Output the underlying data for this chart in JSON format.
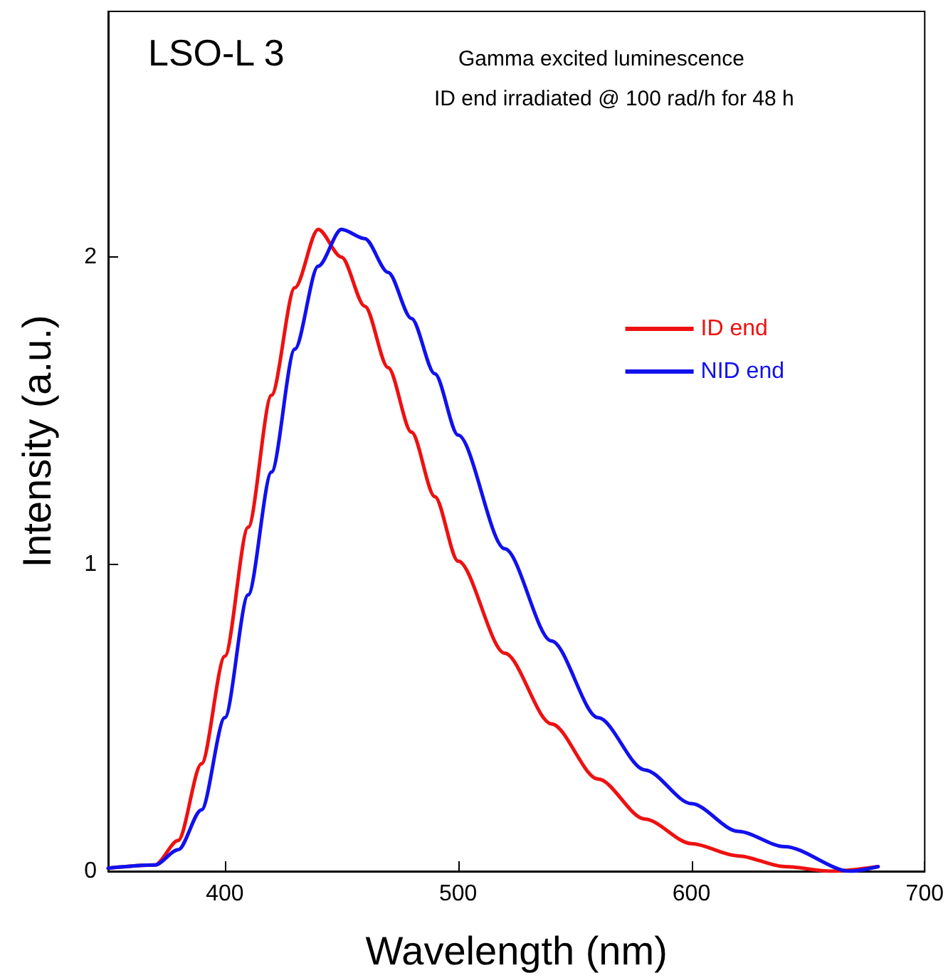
{
  "chart_data": {
    "type": "line",
    "title": "LSO-L 3",
    "subtitle": "Gamma excited luminescence",
    "annotations": [
      "ID end irradiated @ 100 rad/h for 48 h"
    ],
    "xlabel": "Wavelength (nm)",
    "ylabel": "Intensity (a.u.)",
    "xlim": [
      350,
      700
    ],
    "xticks": [
      400,
      500,
      600,
      700
    ],
    "ylim": [
      0,
      2.8
    ],
    "yticks": [
      0,
      1,
      2
    ],
    "grid": false,
    "legend": "right",
    "marker": "none",
    "line_style": "solid",
    "series": [
      {
        "name": "ID end",
        "color": "#ee1111",
        "x": [
          350,
          370,
          380,
          390,
          400,
          410,
          420,
          430,
          440,
          450,
          460,
          470,
          480,
          490,
          500,
          520,
          540,
          560,
          580,
          600,
          620,
          640,
          660,
          680
        ],
        "values": [
          0.01,
          0.02,
          0.1,
          0.35,
          0.7,
          1.12,
          1.55,
          1.9,
          2.09,
          2.0,
          1.84,
          1.64,
          1.43,
          1.22,
          1.01,
          0.71,
          0.48,
          0.3,
          0.17,
          0.09,
          0.05,
          0.015,
          0,
          0.015
        ]
      },
      {
        "name": "NID end",
        "color": "#1111ee",
        "x": [
          350,
          370,
          380,
          390,
          400,
          410,
          420,
          430,
          440,
          450,
          460,
          470,
          480,
          490,
          500,
          520,
          540,
          560,
          580,
          600,
          620,
          640,
          668,
          680
        ],
        "values": [
          0.01,
          0.02,
          0.07,
          0.2,
          0.5,
          0.9,
          1.3,
          1.7,
          1.97,
          2.09,
          2.06,
          1.95,
          1.8,
          1.62,
          1.42,
          1.05,
          0.75,
          0.5,
          0.33,
          0.22,
          0.13,
          0.08,
          0,
          0.015
        ]
      }
    ]
  }
}
